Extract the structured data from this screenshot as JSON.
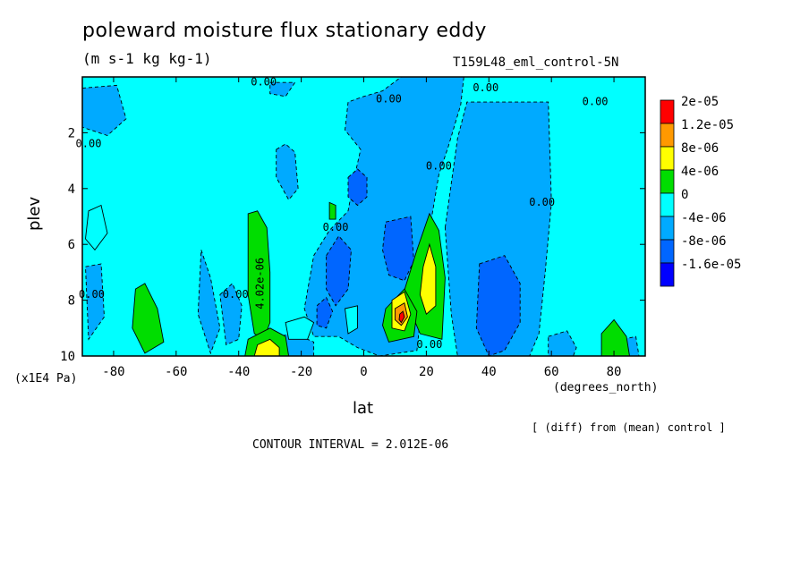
{
  "chart_data": {
    "type": "heatmap",
    "title": "poleward moisture flux stationary eddy",
    "units": "(m s-1 kg kg-1)",
    "run_label": "T159L48_eml_control-5N",
    "xlabel": "lat",
    "x_unit_label": "(degrees_north)",
    "ylabel": "plev",
    "y_unit_label": "(x1E4 Pa)",
    "note": "[ (diff) from (mean) control ]",
    "contour_interval_text": "CONTOUR INTERVAL = 2.012E-06",
    "xlim": [
      -90,
      90
    ],
    "ylim": [
      10,
      0
    ],
    "x_ticks": [
      -80,
      -60,
      -40,
      -20,
      0,
      20,
      40,
      60,
      80
    ],
    "y_ticks": [
      2,
      4,
      6,
      8,
      10
    ],
    "colorbar": {
      "labels": [
        "2e-05",
        "1.2e-05",
        "8e-06",
        "4e-06",
        "0",
        "-4e-06",
        "-8e-06",
        "-1.6e-05"
      ],
      "colors": [
        "#ff0000",
        "#ff9900",
        "#ffff00",
        "#00dd00",
        "#00ffff",
        "#00aaff",
        "#0066ff",
        "#0000ff"
      ]
    },
    "contour_labels": [
      {
        "text": "0.00",
        "x": -32,
        "y": 0.2
      },
      {
        "text": "0.00",
        "x": 8,
        "y": 0.8
      },
      {
        "text": "0.00",
        "x": 39,
        "y": 0.4
      },
      {
        "text": "0.00",
        "x": 74,
        "y": 0.9
      },
      {
        "text": "0.00",
        "x": -88,
        "y": 2.4
      },
      {
        "text": "0.00",
        "x": 24,
        "y": 3.2
      },
      {
        "text": "0.00",
        "x": 57,
        "y": 4.5
      },
      {
        "text": "0.00",
        "x": -9,
        "y": 5.4
      },
      {
        "text": "4.02e-06",
        "x": -33,
        "y": 7.4
      },
      {
        "text": "0.00",
        "x": -41,
        "y": 7.8
      },
      {
        "text": "0.00",
        "x": -87,
        "y": 7.8
      },
      {
        "text": "0.00",
        "x": 21,
        "y": 9.6
      }
    ],
    "regions": [
      {
        "level": "-4e-06",
        "points": [
          [
            12,
            0
          ],
          [
            32,
            0
          ],
          [
            31,
            1
          ],
          [
            27,
            2.5
          ],
          [
            24,
            3.5
          ],
          [
            21,
            5.5
          ],
          [
            17,
            9.8
          ],
          [
            5,
            10
          ],
          [
            -2,
            9.7
          ],
          [
            -8,
            9.3
          ],
          [
            -16,
            9.3
          ],
          [
            -19,
            8.3
          ],
          [
            -16,
            6.4
          ],
          [
            -11,
            5.5
          ],
          [
            -5,
            4.8
          ],
          [
            -3,
            3.6
          ],
          [
            -1,
            2.6
          ],
          [
            -6,
            1.9
          ],
          [
            -5,
            0.9
          ],
          [
            0,
            0.7
          ],
          [
            6,
            0.5
          ]
        ]
      },
      {
        "level": "-4e-06",
        "points": [
          [
            26,
            5.4
          ],
          [
            30,
            2.2
          ],
          [
            33,
            0.9
          ],
          [
            59,
            0.9
          ],
          [
            60,
            4.5
          ],
          [
            58,
            7
          ],
          [
            56,
            9.2
          ],
          [
            53,
            10
          ],
          [
            30,
            10
          ],
          [
            28,
            8.5
          ]
        ]
      },
      {
        "level": "-4e-06",
        "points": [
          [
            -90,
            0.4
          ],
          [
            -79,
            0.3
          ],
          [
            -76,
            1.5
          ],
          [
            -82,
            2.1
          ],
          [
            -90,
            1.8
          ]
        ]
      },
      {
        "level": "-4e-06",
        "points": [
          [
            -30,
            0.2
          ],
          [
            -22,
            0.2
          ],
          [
            -25,
            0.7
          ],
          [
            -30,
            0.6
          ]
        ]
      },
      {
        "level": "-4e-06",
        "points": [
          [
            -28,
            2.6
          ],
          [
            -25,
            2.4
          ],
          [
            -22,
            2.7
          ],
          [
            -21,
            4
          ],
          [
            -24,
            4.4
          ],
          [
            -28,
            3.6
          ]
        ]
      },
      {
        "level": "-4e-06",
        "points": [
          [
            -52,
            6.2
          ],
          [
            -49,
            7.2
          ],
          [
            -46,
            9
          ],
          [
            -49,
            9.9
          ],
          [
            -53,
            8.5
          ]
        ]
      },
      {
        "level": "-4e-06",
        "points": [
          [
            -46,
            7.8
          ],
          [
            -42,
            7.4
          ],
          [
            -39,
            8.2
          ],
          [
            -40,
            9.4
          ],
          [
            -44,
            9.6
          ]
        ]
      },
      {
        "level": "-4e-06",
        "points": [
          [
            -89,
            6.8
          ],
          [
            -84,
            6.7
          ],
          [
            -83,
            8.6
          ],
          [
            -88,
            9.4
          ]
        ]
      },
      {
        "level": "-4e-06",
        "points": [
          [
            -28,
            9.3
          ],
          [
            -22,
            9.2
          ],
          [
            -16,
            9.5
          ],
          [
            -16,
            10
          ],
          [
            -28,
            10
          ]
        ]
      },
      {
        "level": "-4e-06",
        "points": [
          [
            59,
            9.3
          ],
          [
            65,
            9.1
          ],
          [
            68,
            9.7
          ],
          [
            67,
            10
          ],
          [
            59,
            10
          ]
        ]
      },
      {
        "level": "-4e-06",
        "points": [
          [
            83,
            9.4
          ],
          [
            87,
            9.3
          ],
          [
            88,
            10
          ],
          [
            83,
            10
          ]
        ]
      },
      {
        "level": "-8e-06",
        "points": [
          [
            -5,
            3.6
          ],
          [
            -2,
            3.3
          ],
          [
            1,
            3.6
          ],
          [
            1,
            4.3
          ],
          [
            -2,
            4.6
          ],
          [
            -5,
            4.3
          ]
        ]
      },
      {
        "level": "-8e-06",
        "points": [
          [
            -12,
            6.4
          ],
          [
            -8,
            5.7
          ],
          [
            -4,
            6.2
          ],
          [
            -5,
            7.6
          ],
          [
            -9,
            8.2
          ],
          [
            -12,
            7.6
          ]
        ]
      },
      {
        "level": "-8e-06",
        "points": [
          [
            -15,
            8.2
          ],
          [
            -12,
            7.9
          ],
          [
            -10,
            8.4
          ],
          [
            -12,
            9
          ],
          [
            -15,
            8.9
          ]
        ]
      },
      {
        "level": "-8e-06",
        "points": [
          [
            7,
            5.2
          ],
          [
            15,
            5
          ],
          [
            16,
            6.6
          ],
          [
            13,
            7.3
          ],
          [
            8,
            7.1
          ],
          [
            6,
            6.2
          ]
        ]
      },
      {
        "level": "-8e-06",
        "points": [
          [
            37,
            6.7
          ],
          [
            45,
            6.4
          ],
          [
            50,
            7.4
          ],
          [
            50,
            8.8
          ],
          [
            45,
            9.8
          ],
          [
            40,
            10
          ],
          [
            36,
            9
          ]
        ]
      },
      {
        "level": "0",
        "points": [
          [
            -88,
            4.8
          ],
          [
            -84,
            4.6
          ],
          [
            -82,
            5.6
          ],
          [
            -86,
            6.2
          ],
          [
            -89,
            5.8
          ]
        ]
      },
      {
        "level": "0",
        "points": [
          [
            -25,
            8.8
          ],
          [
            -19,
            8.6
          ],
          [
            -16,
            8.8
          ],
          [
            -18,
            9.4
          ],
          [
            -24,
            9.4
          ]
        ]
      },
      {
        "level": "0",
        "points": [
          [
            -6,
            8.3
          ],
          [
            -2,
            8.2
          ],
          [
            -2,
            9
          ],
          [
            -5,
            9.2
          ]
        ]
      },
      {
        "level": "4e-06",
        "points": [
          [
            -37,
            4.9
          ],
          [
            -34,
            4.8
          ],
          [
            -31,
            5.4
          ],
          [
            -30,
            7
          ],
          [
            -30,
            8.8
          ],
          [
            -32,
            9.4
          ],
          [
            -35,
            9.2
          ],
          [
            -37,
            7.8
          ]
        ]
      },
      {
        "level": "4e-06",
        "points": [
          [
            -37,
            9.4
          ],
          [
            -30,
            9
          ],
          [
            -25,
            9.3
          ],
          [
            -24,
            10
          ],
          [
            -38,
            10
          ]
        ]
      },
      {
        "level": "4e-06",
        "points": [
          [
            -73,
            7.6
          ],
          [
            -70,
            7.4
          ],
          [
            -66,
            8.3
          ],
          [
            -64,
            9.5
          ],
          [
            -70,
            9.9
          ],
          [
            -74,
            9
          ]
        ]
      },
      {
        "level": "4e-06",
        "points": [
          [
            17,
            6.2
          ],
          [
            21,
            4.9
          ],
          [
            24,
            5.5
          ],
          [
            26,
            7.2
          ],
          [
            25,
            9.4
          ],
          [
            18,
            9.2
          ],
          [
            15,
            8.4
          ],
          [
            12,
            8
          ]
        ]
      },
      {
        "level": "4e-06",
        "points": [
          [
            7,
            8.3
          ],
          [
            13,
            7.6
          ],
          [
            17,
            8.4
          ],
          [
            16,
            9.3
          ],
          [
            8,
            9.5
          ],
          [
            6,
            8.9
          ]
        ]
      },
      {
        "level": "4e-06",
        "points": [
          [
            -11,
            4.5
          ],
          [
            -9,
            4.6
          ],
          [
            -9,
            5.1
          ],
          [
            -11,
            5.1
          ]
        ]
      },
      {
        "level": "4e-06",
        "points": [
          [
            76,
            9.2
          ],
          [
            80,
            8.7
          ],
          [
            84,
            9.3
          ],
          [
            85,
            10
          ],
          [
            76,
            10
          ]
        ]
      },
      {
        "level": "8e-06",
        "points": [
          [
            -34,
            9.6
          ],
          [
            -30,
            9.4
          ],
          [
            -27,
            9.7
          ],
          [
            -27,
            10
          ],
          [
            -35,
            10
          ]
        ]
      },
      {
        "level": "8e-06",
        "points": [
          [
            19,
            6.8
          ],
          [
            21,
            6
          ],
          [
            23,
            6.8
          ],
          [
            23,
            8.2
          ],
          [
            20,
            8.5
          ],
          [
            18,
            7.8
          ]
        ]
      },
      {
        "level": "8e-06",
        "points": [
          [
            9,
            8
          ],
          [
            13,
            7.7
          ],
          [
            15,
            8.5
          ],
          [
            13,
            9.1
          ],
          [
            9,
            9
          ]
        ]
      },
      {
        "level": "1.2e-05",
        "points": [
          [
            10,
            8.3
          ],
          [
            13,
            8.1
          ],
          [
            14,
            8.6
          ],
          [
            12,
            8.9
          ],
          [
            10,
            8.7
          ]
        ]
      },
      {
        "level": "2e-05",
        "points": [
          [
            11.5,
            8.5
          ],
          [
            12.5,
            8.4
          ],
          [
            13,
            8.6
          ],
          [
            12,
            8.8
          ],
          [
            11.3,
            8.7
          ]
        ]
      }
    ]
  }
}
